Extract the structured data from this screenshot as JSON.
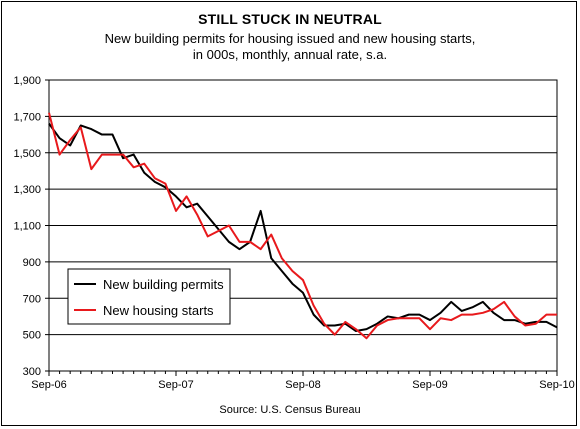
{
  "chart_data": {
    "type": "line",
    "title": "STILL STUCK IN NEUTRAL",
    "subtitle_lines": [
      "New building permits for housing issued and new housing starts,",
      "in 000s, monthly, annual rate, s.a."
    ],
    "source": "Source: U.S. Census Bureau",
    "x_tick_labels": [
      "Sep-06",
      "Sep-07",
      "Sep-08",
      "Sep-09",
      "Sep-10"
    ],
    "x_tick_months": [
      0,
      12,
      24,
      36,
      48
    ],
    "y_tick_labels": [
      "300",
      "500",
      "700",
      "900",
      "1,100",
      "1,300",
      "1,500",
      "1,700",
      "1,900"
    ],
    "y_tick_values": [
      300,
      500,
      700,
      900,
      1100,
      1300,
      1500,
      1700,
      1900
    ],
    "ylim": [
      300,
      1900
    ],
    "xlim_months": [
      0,
      48
    ],
    "grid": "horizontal",
    "legend_position": "lower-left",
    "series": [
      {
        "name": "New building permits",
        "color": "#000000",
        "x_months": [
          0,
          1,
          2,
          3,
          4,
          5,
          6,
          7,
          8,
          9,
          10,
          11,
          12,
          13,
          14,
          15,
          16,
          17,
          18,
          19,
          20,
          21,
          22,
          23,
          24,
          25,
          26,
          27,
          28,
          29,
          30,
          31,
          32,
          33,
          34,
          35,
          36,
          37,
          38,
          39,
          40,
          41,
          42,
          43,
          44,
          45,
          46,
          47,
          48
        ],
        "values": [
          1660,
          1580,
          1540,
          1650,
          1630,
          1600,
          1600,
          1470,
          1490,
          1390,
          1340,
          1310,
          1260,
          1200,
          1220,
          1150,
          1080,
          1010,
          970,
          1010,
          1180,
          920,
          850,
          780,
          730,
          610,
          550,
          550,
          560,
          520,
          530,
          560,
          600,
          590,
          610,
          610,
          580,
          620,
          680,
          630,
          650,
          680,
          620,
          580,
          580,
          560,
          570,
          570,
          540
        ]
      },
      {
        "name": "New housing starts",
        "color": "#e8191c",
        "x_months": [
          0,
          1,
          2,
          3,
          4,
          5,
          6,
          7,
          8,
          9,
          10,
          11,
          12,
          13,
          14,
          15,
          16,
          17,
          18,
          19,
          20,
          21,
          22,
          23,
          24,
          25,
          26,
          27,
          28,
          29,
          30,
          31,
          32,
          33,
          34,
          35,
          36,
          37,
          38,
          39,
          40,
          41,
          42,
          43,
          44,
          45,
          46,
          47,
          48
        ],
        "values": [
          1720,
          1490,
          1570,
          1640,
          1410,
          1490,
          1490,
          1490,
          1420,
          1440,
          1360,
          1330,
          1180,
          1260,
          1160,
          1040,
          1070,
          1100,
          1010,
          1010,
          970,
          1050,
          920,
          850,
          800,
          660,
          560,
          500,
          570,
          530,
          480,
          550,
          580,
          590,
          590,
          590,
          530,
          590,
          580,
          610,
          610,
          620,
          640,
          680,
          600,
          550,
          560,
          610,
          610
        ]
      }
    ]
  }
}
